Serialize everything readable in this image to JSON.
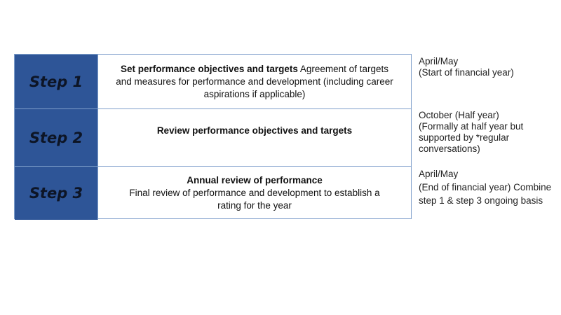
{
  "steps": [
    {
      "label": "Step 1",
      "title": "Set performance objectives and targets",
      "description": "Agreement of targets and measures for performance and development (including career aspirations if applicable)",
      "timing": "April/May\n(Start of financial year)"
    },
    {
      "label": "Step 2",
      "title": "Review performance objectives and targets",
      "description": "",
      "timing": "October (Half year)\n(Formally at half year but\nsupported by *regular\nconversations)"
    },
    {
      "label": "Step 3",
      "title": "Annual review of performance",
      "description": "Final review of performance and development to establish a rating for the year",
      "timing": "April/May\n(End of financial year) Combine\nstep 1 & step 3 ongoing basis"
    }
  ],
  "colors": {
    "step_fill": "#2e5597",
    "border": "#7f9fcb"
  }
}
